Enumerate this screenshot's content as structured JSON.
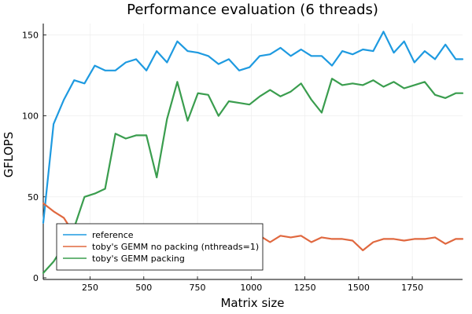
{
  "chart_data": {
    "type": "line",
    "title": "Performance evaluation (6 threads)",
    "xlabel": "Matrix size",
    "ylabel": "GFLOPS",
    "xlim": [
      32,
      1984
    ],
    "ylim": [
      -1,
      157
    ],
    "xticks": [
      250,
      500,
      750,
      1000,
      1250,
      1500,
      1750
    ],
    "xtick_labels": [
      "250",
      "500",
      "750",
      "1000",
      "1250",
      "1500",
      "1750"
    ],
    "yticks": [
      0,
      50,
      100,
      150
    ],
    "ytick_labels": [
      "0",
      "50",
      "100",
      "150"
    ],
    "grid": true,
    "legend_position": "bottom-left",
    "x": [
      32,
      80,
      128,
      176,
      224,
      272,
      320,
      368,
      416,
      464,
      512,
      560,
      608,
      656,
      704,
      752,
      800,
      848,
      896,
      944,
      992,
      1040,
      1088,
      1136,
      1184,
      1232,
      1280,
      1328,
      1376,
      1424,
      1472,
      1520,
      1568,
      1616,
      1664,
      1712,
      1760,
      1808,
      1856,
      1904,
      1952,
      1984
    ],
    "series": [
      {
        "name": "reference",
        "color": "#1e9ae0",
        "values": [
          34,
          95,
          110,
          122,
          120,
          131,
          128,
          128,
          133,
          135,
          128,
          140,
          133,
          146,
          140,
          139,
          137,
          132,
          135,
          128,
          130,
          137,
          138,
          142,
          137,
          141,
          137,
          137,
          131,
          140,
          138,
          141,
          140,
          152,
          139,
          146,
          133,
          140,
          135,
          144,
          135,
          135
        ]
      },
      {
        "name": "toby's GEMM no packing (nthreads=1)",
        "color": "#e0683f",
        "values": [
          46,
          41,
          37,
          27,
          25,
          24,
          25,
          25,
          24,
          24,
          25,
          24,
          25,
          24,
          24,
          24,
          25,
          24,
          24,
          24,
          24,
          26,
          22,
          26,
          25,
          26,
          22,
          25,
          24,
          24,
          23,
          17,
          22,
          24,
          24,
          23,
          24,
          24,
          25,
          21,
          24,
          24
        ]
      },
      {
        "name": "toby's GEMM packing",
        "color": "#3a9d4e",
        "values": [
          3,
          10,
          20,
          31,
          50,
          52,
          55,
          89,
          86,
          88,
          88,
          62,
          98,
          121,
          97,
          114,
          113,
          100,
          109,
          108,
          107,
          112,
          116,
          112,
          115,
          120,
          110,
          102,
          123,
          119,
          120,
          119,
          122,
          118,
          121,
          117,
          119,
          121,
          113,
          111,
          114,
          114
        ]
      }
    ]
  }
}
